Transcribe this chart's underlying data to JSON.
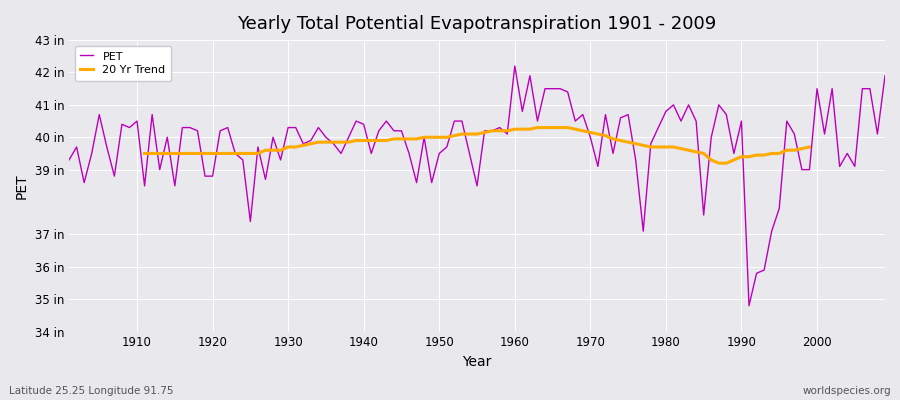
{
  "title": "Yearly Total Potential Evapotranspiration 1901 - 2009",
  "xlabel": "Year",
  "ylabel": "PET",
  "subtitle_left": "Latitude 25.25 Longitude 91.75",
  "subtitle_right": "worldspecies.org",
  "pet_color": "#bb00bb",
  "trend_color": "#ffaa00",
  "background_color": "#e8e8ed",
  "grid_color": "#ffffff",
  "ylim_min": 34,
  "ylim_max": 43,
  "ytick_values": [
    34,
    35,
    36,
    37,
    39,
    40,
    41,
    42,
    43
  ],
  "ytick_labels": [
    "34 in",
    "35 in",
    "36 in",
    "37 in",
    "39 in",
    "40 in",
    "41 in",
    "42 in",
    "43 in"
  ],
  "years": [
    1901,
    1902,
    1903,
    1904,
    1905,
    1906,
    1907,
    1908,
    1909,
    1910,
    1911,
    1912,
    1913,
    1914,
    1915,
    1916,
    1917,
    1918,
    1919,
    1920,
    1921,
    1922,
    1923,
    1924,
    1925,
    1926,
    1927,
    1928,
    1929,
    1930,
    1931,
    1932,
    1933,
    1934,
    1935,
    1936,
    1937,
    1938,
    1939,
    1940,
    1941,
    1942,
    1943,
    1944,
    1945,
    1946,
    1947,
    1948,
    1949,
    1950,
    1951,
    1952,
    1953,
    1954,
    1955,
    1956,
    1957,
    1958,
    1959,
    1960,
    1961,
    1962,
    1963,
    1964,
    1965,
    1966,
    1967,
    1968,
    1969,
    1970,
    1971,
    1972,
    1973,
    1974,
    1975,
    1976,
    1977,
    1978,
    1979,
    1980,
    1981,
    1982,
    1983,
    1984,
    1985,
    1986,
    1987,
    1988,
    1989,
    1990,
    1991,
    1992,
    1993,
    1994,
    1995,
    1996,
    1997,
    1998,
    1999,
    2000,
    2001,
    2002,
    2003,
    2004,
    2005,
    2006,
    2007,
    2008,
    2009
  ],
  "pet": [
    39.3,
    39.7,
    38.6,
    39.5,
    40.7,
    39.7,
    38.8,
    40.4,
    40.3,
    40.5,
    38.5,
    40.7,
    39.0,
    40.0,
    38.5,
    40.3,
    40.3,
    40.2,
    38.8,
    38.8,
    40.2,
    40.3,
    39.5,
    39.3,
    37.4,
    39.7,
    38.7,
    40.0,
    39.3,
    40.3,
    40.3,
    39.8,
    39.9,
    40.3,
    40.0,
    39.8,
    39.5,
    40.0,
    40.5,
    40.4,
    39.5,
    40.2,
    40.5,
    40.2,
    40.2,
    39.5,
    38.6,
    40.0,
    38.6,
    39.5,
    39.7,
    40.5,
    40.5,
    39.5,
    38.5,
    40.2,
    40.2,
    40.3,
    40.1,
    42.2,
    40.8,
    41.9,
    40.5,
    41.5,
    41.5,
    41.5,
    41.4,
    40.5,
    40.7,
    40.0,
    39.1,
    40.7,
    39.5,
    40.6,
    40.7,
    39.3,
    37.1,
    39.8,
    40.3,
    40.8,
    41.0,
    40.5,
    41.0,
    40.5,
    37.6,
    40.0,
    41.0,
    40.7,
    39.5,
    40.5,
    34.8,
    35.8,
    35.9,
    37.1,
    37.8,
    40.5,
    40.1,
    39.0,
    39.0,
    41.5,
    40.1,
    41.5,
    39.1,
    39.5,
    39.1,
    41.5,
    41.5,
    40.1,
    41.9
  ],
  "trend": [
    null,
    null,
    null,
    null,
    null,
    null,
    null,
    null,
    null,
    null,
    39.5,
    39.5,
    39.5,
    39.5,
    39.5,
    39.5,
    39.5,
    39.5,
    39.5,
    39.5,
    39.5,
    39.5,
    39.5,
    39.5,
    39.5,
    39.5,
    39.6,
    39.6,
    39.6,
    39.7,
    39.7,
    39.75,
    39.8,
    39.85,
    39.85,
    39.85,
    39.85,
    39.85,
    39.9,
    39.9,
    39.9,
    39.9,
    39.9,
    39.95,
    39.95,
    39.95,
    39.95,
    40.0,
    40.0,
    40.0,
    40.0,
    40.05,
    40.1,
    40.1,
    40.1,
    40.15,
    40.2,
    40.2,
    40.2,
    40.25,
    40.25,
    40.25,
    40.3,
    40.3,
    40.3,
    40.3,
    40.3,
    40.25,
    40.2,
    40.15,
    40.1,
    40.05,
    39.95,
    39.9,
    39.85,
    39.8,
    39.75,
    39.7,
    39.7,
    39.7,
    39.7,
    39.65,
    39.6,
    39.55,
    39.5,
    39.3,
    39.2,
    39.2,
    39.3,
    39.4,
    39.4,
    39.45,
    39.45,
    39.5,
    39.5,
    39.6,
    39.6,
    39.65,
    39.7
  ]
}
